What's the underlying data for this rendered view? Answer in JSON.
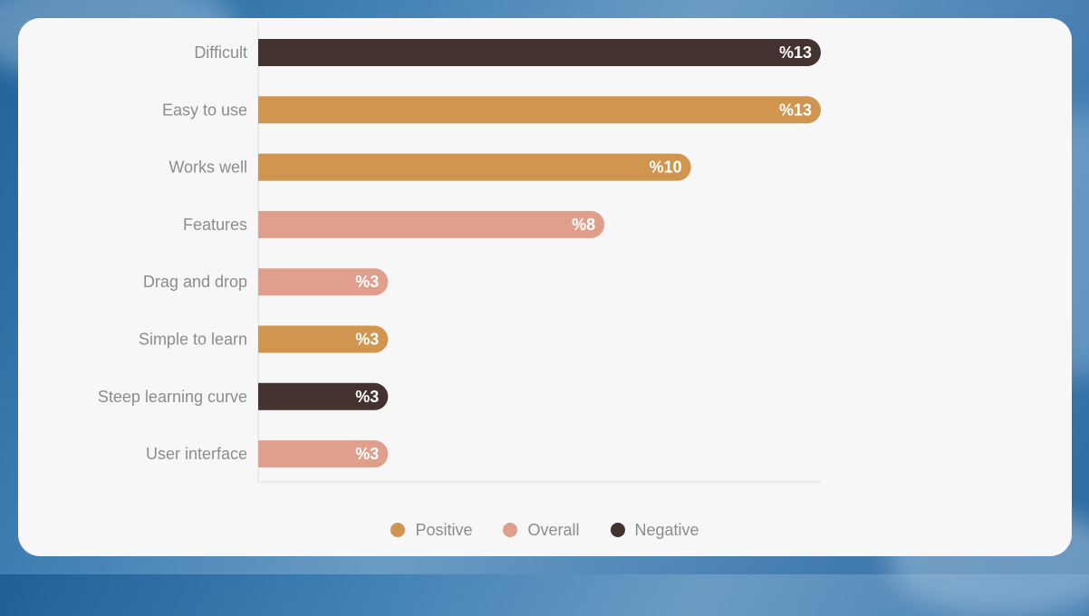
{
  "colors": {
    "positive": "#d0964f",
    "overall": "#e09e8d",
    "negative": "#433230",
    "label_text": "#8c8c8c",
    "bar_text": "#ffffff",
    "axis": "#dddddd"
  },
  "chart_data": {
    "type": "bar",
    "orientation": "horizontal",
    "title": "",
    "xlabel": "",
    "ylabel": "",
    "xlim": [
      0,
      13
    ],
    "grid": false,
    "legend_position": "bottom-center",
    "categories": [
      "Difficult",
      "Easy to use",
      "Works well",
      "Features",
      "Drag and drop",
      "Simple to learn",
      "Steep learning curve",
      "User interface"
    ],
    "values": [
      13,
      13,
      10,
      8,
      3,
      3,
      3,
      3
    ],
    "value_labels": [
      "%13",
      "%13",
      "%10",
      "%8",
      "%3",
      "%3",
      "%3",
      "%3"
    ],
    "bar_groups": [
      "negative",
      "positive",
      "positive",
      "overall",
      "overall",
      "positive",
      "negative",
      "overall"
    ],
    "legend": [
      {
        "key": "positive",
        "name": "Positive"
      },
      {
        "key": "overall",
        "name": "Overall"
      },
      {
        "key": "negative",
        "name": "Negative"
      }
    ]
  }
}
